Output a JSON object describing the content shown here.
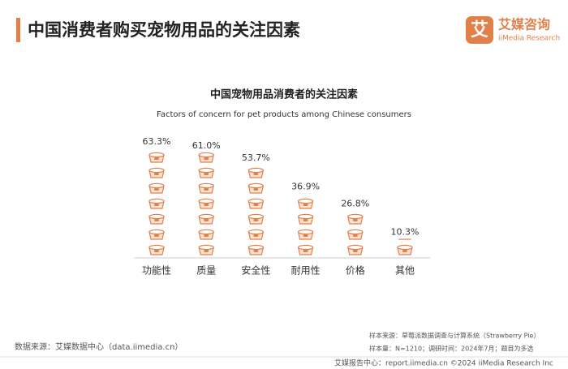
{
  "header": {
    "title": "中国消费者购买宠物用品的关注因素",
    "logo": "艾媒咨询",
    "logo_en": "iiMedia Research",
    "logo_mark": "艾"
  },
  "chart_data": {
    "type": "pictorial_bar",
    "title": "中国宠物用品消费者的关注因素",
    "subtitle": "Factors of concern for pet products among Chinese consumers",
    "categories": [
      "功能性",
      "质量",
      "安全性",
      "耐用性",
      "价格",
      "其他"
    ],
    "values": [
      63.3,
      61.0,
      53.7,
      36.9,
      26.8,
      10.3
    ],
    "value_labels": [
      "63.3%",
      "61.0%",
      "53.7%",
      "36.9%",
      "26.8%",
      "10.3%"
    ],
    "color": "#e2804a"
  },
  "footer": {
    "source": "数据来源：艾媒数据中心（data.iimedia.cn）",
    "sample_source": "样本来源：草莓派数据调查与计算系统（Strawberry Pie）",
    "sample_info": "样本量：N=1210；调研时间：2024年7月；题目为多选",
    "bottom": "艾媒报告中心：report.iimedia.cn   ©2024  iiMedia Research  Inc"
  }
}
